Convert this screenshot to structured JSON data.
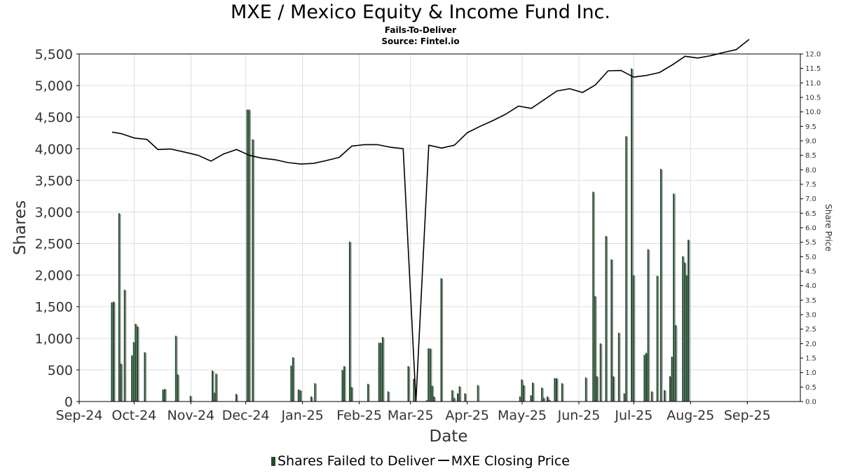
{
  "title": "MXE / Mexico Equity & Income Fund Inc.",
  "subtitle": "Fails-To-Deliver",
  "source": "Source: Fintel.io",
  "legend": {
    "bars": "Shares Failed to Deliver",
    "line": "MXE Closing Price"
  },
  "colors": {
    "bar_dark": "#1f4d2b",
    "bar_light": "#8c8c8c",
    "line": "#000000",
    "grid": "#dddddd"
  },
  "chart_data": {
    "type": "bar+line",
    "xlabel": "Date",
    "ylabel": "Shares",
    "y2label": "Share Price",
    "ylim": [
      0,
      5500
    ],
    "y2lim": [
      0,
      12
    ],
    "xlim": [
      "2024-09-01",
      "2025-09-30"
    ],
    "grid": true,
    "legend_position": "bottom",
    "x_ticks": [
      {
        "date": "2024-09-01",
        "label": "Sep-24"
      },
      {
        "date": "2024-10-01",
        "label": "Oct-24"
      },
      {
        "date": "2024-11-01",
        "label": "Nov-24"
      },
      {
        "date": "2024-12-01",
        "label": "Dec-24"
      },
      {
        "date": "2025-01-01",
        "label": "Jan-25"
      },
      {
        "date": "2025-02-01",
        "label": "Feb-25"
      },
      {
        "date": "2025-03-01",
        "label": "Mar-25"
      },
      {
        "date": "2025-04-01",
        "label": "Apr-25"
      },
      {
        "date": "2025-05-01",
        "label": "May-25"
      },
      {
        "date": "2025-06-01",
        "label": "Jun-25"
      },
      {
        "date": "2025-07-01",
        "label": "Jul-25"
      },
      {
        "date": "2025-08-01",
        "label": "Aug-25"
      },
      {
        "date": "2025-09-01",
        "label": "Sep-25"
      }
    ],
    "y_ticks": [
      {
        "value": 0,
        "label": "0"
      },
      {
        "value": 500,
        "label": "500"
      },
      {
        "value": 1000,
        "label": "1,000"
      },
      {
        "value": 1500,
        "label": "1,500"
      },
      {
        "value": 2000,
        "label": "2,000"
      },
      {
        "value": 2500,
        "label": "2,500"
      },
      {
        "value": 3000,
        "label": "3,000"
      },
      {
        "value": 3500,
        "label": "3,500"
      },
      {
        "value": 4000,
        "label": "4,000"
      },
      {
        "value": 4500,
        "label": "4,500"
      },
      {
        "value": 5000,
        "label": "5,000"
      },
      {
        "value": 5500,
        "label": "5,500"
      }
    ],
    "y2_ticks": [
      "0.0",
      "0.5",
      "1.0",
      "1.5",
      "2.0",
      "2.5",
      "3.0",
      "3.5",
      "4.0",
      "4.5",
      "5.0",
      "5.5",
      "6.0",
      "6.5",
      "7.0",
      "7.5",
      "8.0",
      "8.5",
      "9.0",
      "9.5",
      "10.0",
      "10.5",
      "11.0",
      "11.5",
      "12.0"
    ],
    "series": [
      {
        "name": "Shares Failed to Deliver",
        "type": "bar",
        "points": [
          {
            "x": "2024-09-19",
            "y": 1570
          },
          {
            "x": "2024-09-20",
            "y": 1580
          },
          {
            "x": "2024-09-23",
            "y": 2980
          },
          {
            "x": "2024-09-24",
            "y": 600
          },
          {
            "x": "2024-09-26",
            "y": 1770
          },
          {
            "x": "2024-09-30",
            "y": 730
          },
          {
            "x": "2024-10-01",
            "y": 940
          },
          {
            "x": "2024-10-02",
            "y": 1230
          },
          {
            "x": "2024-10-03",
            "y": 1190
          },
          {
            "x": "2024-10-07",
            "y": 780
          },
          {
            "x": "2024-10-17",
            "y": 190
          },
          {
            "x": "2024-10-18",
            "y": 200
          },
          {
            "x": "2024-10-24",
            "y": 1040
          },
          {
            "x": "2024-10-25",
            "y": 430
          },
          {
            "x": "2024-11-01",
            "y": 90
          },
          {
            "x": "2024-11-13",
            "y": 490
          },
          {
            "x": "2024-11-14",
            "y": 140
          },
          {
            "x": "2024-11-15",
            "y": 440
          },
          {
            "x": "2024-11-26",
            "y": 120
          },
          {
            "x": "2024-12-02",
            "y": 4620
          },
          {
            "x": "2024-12-03",
            "y": 4620
          },
          {
            "x": "2024-12-05",
            "y": 4150
          },
          {
            "x": "2024-12-26",
            "y": 570
          },
          {
            "x": "2024-12-27",
            "y": 700
          },
          {
            "x": "2024-12-30",
            "y": 190
          },
          {
            "x": "2024-12-31",
            "y": 180
          },
          {
            "x": "2025-01-06",
            "y": 80
          },
          {
            "x": "2025-01-08",
            "y": 290
          },
          {
            "x": "2025-01-23",
            "y": 500
          },
          {
            "x": "2025-01-24",
            "y": 560
          },
          {
            "x": "2025-01-27",
            "y": 2530
          },
          {
            "x": "2025-01-28",
            "y": 230
          },
          {
            "x": "2025-02-06",
            "y": 280
          },
          {
            "x": "2025-02-12",
            "y": 930
          },
          {
            "x": "2025-02-13",
            "y": 930
          },
          {
            "x": "2025-02-14",
            "y": 1020
          },
          {
            "x": "2025-02-17",
            "y": 160
          },
          {
            "x": "2025-02-28",
            "y": 560
          },
          {
            "x": "2025-03-03",
            "y": 360
          },
          {
            "x": "2025-03-10",
            "y": 20
          },
          {
            "x": "2025-03-11",
            "y": 840
          },
          {
            "x": "2025-03-12",
            "y": 840
          },
          {
            "x": "2025-03-13",
            "y": 250
          },
          {
            "x": "2025-03-14",
            "y": 80
          },
          {
            "x": "2025-03-18",
            "y": 1950
          },
          {
            "x": "2025-03-24",
            "y": 180
          },
          {
            "x": "2025-03-25",
            "y": 60
          },
          {
            "x": "2025-03-27",
            "y": 130
          },
          {
            "x": "2025-03-28",
            "y": 240
          },
          {
            "x": "2025-03-31",
            "y": 130
          },
          {
            "x": "2025-04-07",
            "y": 260
          },
          {
            "x": "2025-04-30",
            "y": 80
          },
          {
            "x": "2025-05-01",
            "y": 350
          },
          {
            "x": "2025-05-02",
            "y": 260
          },
          {
            "x": "2025-05-06",
            "y": 100
          },
          {
            "x": "2025-05-07",
            "y": 300
          },
          {
            "x": "2025-05-12",
            "y": 220
          },
          {
            "x": "2025-05-13",
            "y": 60
          },
          {
            "x": "2025-05-15",
            "y": 80
          },
          {
            "x": "2025-05-16",
            "y": 30
          },
          {
            "x": "2025-05-19",
            "y": 370
          },
          {
            "x": "2025-05-20",
            "y": 370
          },
          {
            "x": "2025-05-23",
            "y": 290
          },
          {
            "x": "2025-06-05",
            "y": 380
          },
          {
            "x": "2025-06-09",
            "y": 3320
          },
          {
            "x": "2025-06-10",
            "y": 1670
          },
          {
            "x": "2025-06-11",
            "y": 400
          },
          {
            "x": "2025-06-13",
            "y": 920
          },
          {
            "x": "2025-06-16",
            "y": 2620
          },
          {
            "x": "2025-06-19",
            "y": 2250
          },
          {
            "x": "2025-06-20",
            "y": 400
          },
          {
            "x": "2025-06-23",
            "y": 1090
          },
          {
            "x": "2025-06-26",
            "y": 130
          },
          {
            "x": "2025-06-27",
            "y": 4200
          },
          {
            "x": "2025-06-30",
            "y": 5270
          },
          {
            "x": "2025-07-01",
            "y": 2000
          },
          {
            "x": "2025-07-07",
            "y": 740
          },
          {
            "x": "2025-07-08",
            "y": 770
          },
          {
            "x": "2025-07-09",
            "y": 2410
          },
          {
            "x": "2025-07-11",
            "y": 160
          },
          {
            "x": "2025-07-14",
            "y": 1990
          },
          {
            "x": "2025-07-16",
            "y": 3680
          },
          {
            "x": "2025-07-18",
            "y": 180
          },
          {
            "x": "2025-07-21",
            "y": 400
          },
          {
            "x": "2025-07-22",
            "y": 710
          },
          {
            "x": "2025-07-23",
            "y": 3290
          },
          {
            "x": "2025-07-24",
            "y": 1210
          },
          {
            "x": "2025-07-28",
            "y": 2300
          },
          {
            "x": "2025-07-29",
            "y": 2200
          },
          {
            "x": "2025-07-30",
            "y": 2000
          },
          {
            "x": "2025-07-31",
            "y": 2560
          }
        ]
      },
      {
        "name": "MXE Closing Price",
        "type": "line",
        "axis": "right",
        "points": [
          {
            "x": "2024-09-19",
            "y": 9.3
          },
          {
            "x": "2024-09-24",
            "y": 9.25
          },
          {
            "x": "2024-10-01",
            "y": 9.1
          },
          {
            "x": "2024-10-08",
            "y": 9.05
          },
          {
            "x": "2024-10-14",
            "y": 8.7
          },
          {
            "x": "2024-10-21",
            "y": 8.72
          },
          {
            "x": "2024-10-28",
            "y": 8.62
          },
          {
            "x": "2024-11-05",
            "y": 8.5
          },
          {
            "x": "2024-11-12",
            "y": 8.3
          },
          {
            "x": "2024-11-19",
            "y": 8.55
          },
          {
            "x": "2024-11-26",
            "y": 8.7
          },
          {
            "x": "2024-12-03",
            "y": 8.5
          },
          {
            "x": "2024-12-10",
            "y": 8.4
          },
          {
            "x": "2024-12-17",
            "y": 8.35
          },
          {
            "x": "2024-12-24",
            "y": 8.25
          },
          {
            "x": "2024-12-31",
            "y": 8.2
          },
          {
            "x": "2025-01-07",
            "y": 8.22
          },
          {
            "x": "2025-01-14",
            "y": 8.32
          },
          {
            "x": "2025-01-21",
            "y": 8.43
          },
          {
            "x": "2025-01-28",
            "y": 8.82
          },
          {
            "x": "2025-02-04",
            "y": 8.87
          },
          {
            "x": "2025-02-11",
            "y": 8.87
          },
          {
            "x": "2025-02-18",
            "y": 8.78
          },
          {
            "x": "2025-02-25",
            "y": 8.73
          },
          {
            "x": "2025-03-04",
            "y": 0.0
          },
          {
            "x": "2025-03-11",
            "y": 8.85
          },
          {
            "x": "2025-03-18",
            "y": 8.75
          },
          {
            "x": "2025-03-25",
            "y": 8.85
          },
          {
            "x": "2025-04-01",
            "y": 9.28
          },
          {
            "x": "2025-04-08",
            "y": 9.5
          },
          {
            "x": "2025-04-15",
            "y": 9.7
          },
          {
            "x": "2025-04-22",
            "y": 9.92
          },
          {
            "x": "2025-04-29",
            "y": 10.2
          },
          {
            "x": "2025-05-06",
            "y": 10.12
          },
          {
            "x": "2025-05-13",
            "y": 10.42
          },
          {
            "x": "2025-05-20",
            "y": 10.72
          },
          {
            "x": "2025-05-27",
            "y": 10.8
          },
          {
            "x": "2025-06-03",
            "y": 10.67
          },
          {
            "x": "2025-06-10",
            "y": 10.93
          },
          {
            "x": "2025-06-17",
            "y": 11.42
          },
          {
            "x": "2025-06-24",
            "y": 11.43
          },
          {
            "x": "2025-07-01",
            "y": 11.2
          },
          {
            "x": "2025-07-08",
            "y": 11.26
          },
          {
            "x": "2025-07-15",
            "y": 11.36
          },
          {
            "x": "2025-07-22",
            "y": 11.62
          },
          {
            "x": "2025-07-29",
            "y": 11.92
          },
          {
            "x": "2025-08-05",
            "y": 11.86
          },
          {
            "x": "2025-08-12",
            "y": 11.94
          },
          {
            "x": "2025-08-19",
            "y": 12.05
          },
          {
            "x": "2025-08-26",
            "y": 12.15
          },
          {
            "x": "2025-09-02",
            "y": 12.5
          }
        ]
      }
    ]
  }
}
